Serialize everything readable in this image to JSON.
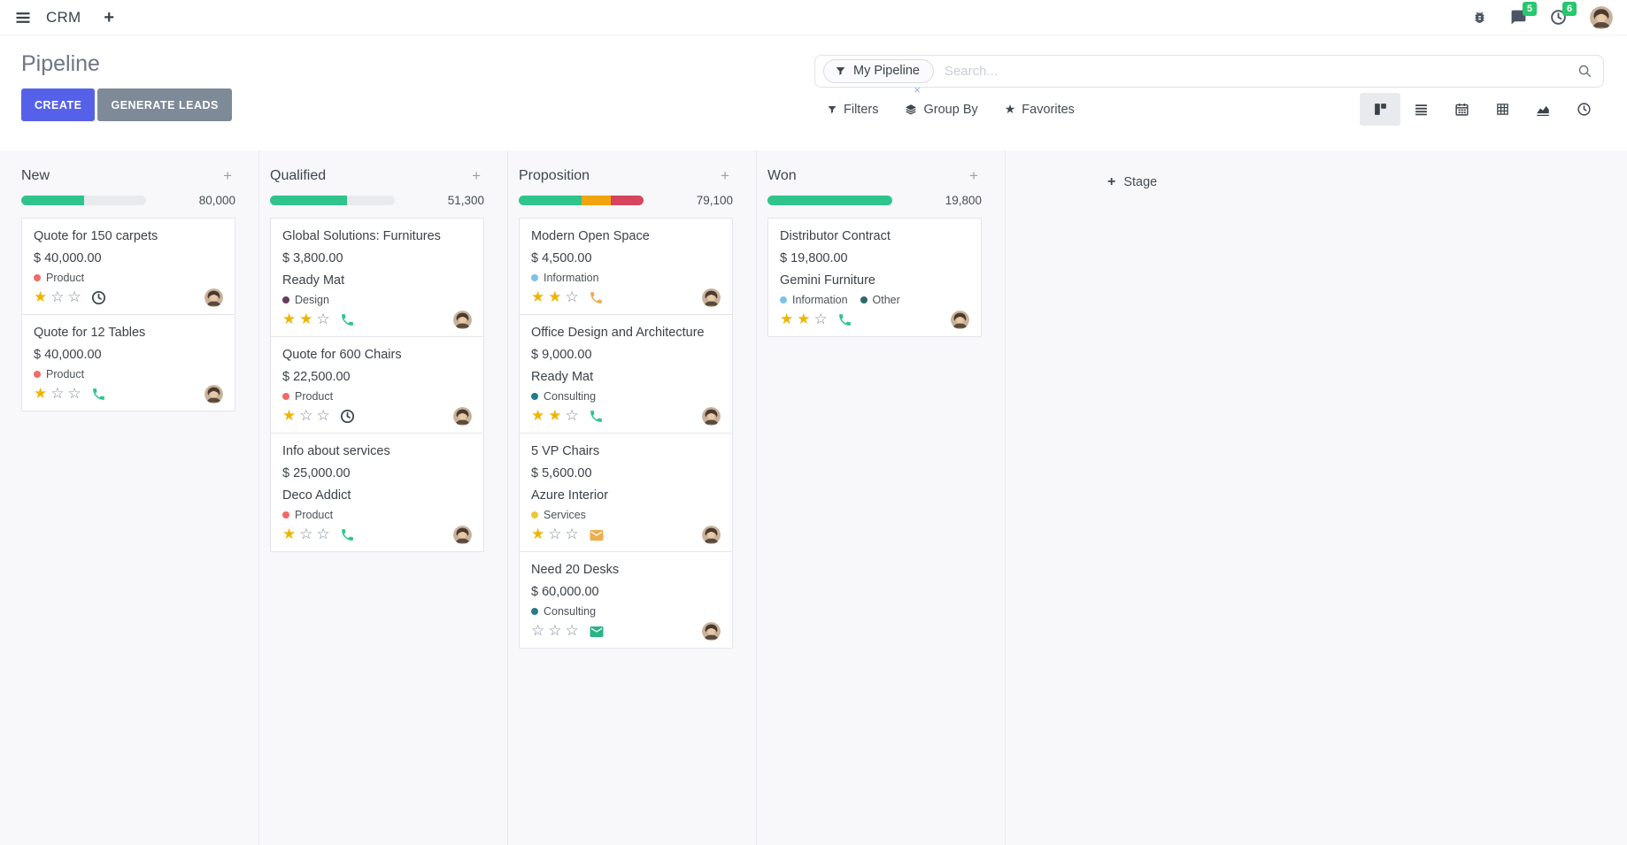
{
  "colors": {
    "primary": "#5661EA",
    "secondary": "#7E8A97",
    "success": "#28C76F",
    "star_gold": "#EFB402",
    "star_empty": "#7D8798",
    "progress_green": "#30C48D",
    "progress_orange": "#F0A40E",
    "progress_red": "#D6455D"
  },
  "icons": {
    "plus": "+"
  },
  "navbar": {
    "app_name": "CRM",
    "messages_badge": "5",
    "activities_badge": "6"
  },
  "control_panel": {
    "title": "Pipeline",
    "create_label": "CREATE",
    "generate_leads_label": "GENERATE LEADS",
    "filters_label": "Filters",
    "group_by_label": "Group By",
    "favorites_label": "Favorites",
    "search": {
      "facet_label": "My Pipeline",
      "facet_remove": "×",
      "placeholder": "Search..."
    },
    "view_switcher_active": "kanban"
  },
  "kanban": {
    "add_stage_label": "Stage",
    "columns": [
      {
        "name": "New",
        "amount": "80,000",
        "progress": [
          {
            "color": "#30C48D",
            "pct": 50
          }
        ],
        "cards": [
          {
            "title": "Quote for 150 carpets",
            "amount": "$ 40,000.00",
            "tags": [
              {
                "label": "Product",
                "color": "#F06A67"
              }
            ],
            "stars": 1,
            "action": {
              "icon": "clock",
              "color": "#3F4750"
            }
          },
          {
            "title": "Quote for 12 Tables",
            "amount": "$ 40,000.00",
            "tags": [
              {
                "label": "Product",
                "color": "#F06A67"
              }
            ],
            "stars": 1,
            "action": {
              "icon": "phone",
              "color": "#2EC58C"
            }
          }
        ]
      },
      {
        "name": "Qualified",
        "amount": "51,300",
        "progress": [
          {
            "color": "#30C48D",
            "pct": 62
          }
        ],
        "cards": [
          {
            "title": "Global Solutions: Furnitures",
            "amount": "$ 3,800.00",
            "partner": "Ready Mat",
            "tags": [
              {
                "label": "Design",
                "color": "#683A5F"
              }
            ],
            "stars": 2,
            "action": {
              "icon": "phone",
              "color": "#2EC58C"
            }
          },
          {
            "title": "Quote for 600 Chairs",
            "amount": "$ 22,500.00",
            "tags": [
              {
                "label": "Product",
                "color": "#F06A67"
              }
            ],
            "stars": 1,
            "action": {
              "icon": "clock",
              "color": "#3F4750"
            }
          },
          {
            "title": "Info about services",
            "amount": "$ 25,000.00",
            "partner": "Deco Addict",
            "tags": [
              {
                "label": "Product",
                "color": "#F06A67"
              }
            ],
            "stars": 1,
            "action": {
              "icon": "phone",
              "color": "#2EC58C"
            }
          }
        ]
      },
      {
        "name": "Proposition",
        "amount": "79,100",
        "progress": [
          {
            "color": "#30C48D",
            "pct": 50
          },
          {
            "color": "#F0A40E",
            "pct": 24
          },
          {
            "color": "#D6455D",
            "pct": 26
          }
        ],
        "cards": [
          {
            "title": "Modern Open Space",
            "amount": "$ 4,500.00",
            "tags": [
              {
                "label": "Information",
                "color": "#7EC1EA"
              }
            ],
            "stars": 2,
            "action": {
              "icon": "phone",
              "color": "#EDAE4F"
            }
          },
          {
            "title": "Office Design and Architecture",
            "amount": "$ 9,000.00",
            "partner": "Ready Mat",
            "tags": [
              {
                "label": "Consulting",
                "color": "#267B8C"
              }
            ],
            "stars": 2,
            "action": {
              "icon": "phone",
              "color": "#2EC58C"
            }
          },
          {
            "title": "5 VP Chairs",
            "amount": "$ 5,600.00",
            "partner": "Azure Interior",
            "tags": [
              {
                "label": "Services",
                "color": "#EEC733"
              }
            ],
            "stars": 1,
            "action": {
              "icon": "envelope",
              "color": "#EDAE4F"
            }
          },
          {
            "title": "Need 20 Desks",
            "amount": "$ 60,000.00",
            "tags": [
              {
                "label": "Consulting",
                "color": "#267B8C"
              }
            ],
            "stars": 0,
            "action": {
              "icon": "envelope",
              "color": "#2BB488"
            }
          }
        ]
      },
      {
        "name": "Won",
        "amount": "19,800",
        "progress": [
          {
            "color": "#30C48D",
            "pct": 100
          }
        ],
        "cards": [
          {
            "title": "Distributor Contract",
            "amount": "$ 19,800.00",
            "partner": "Gemini Furniture",
            "tags": [
              {
                "label": "Information",
                "color": "#7EC1EA"
              },
              {
                "label": "Other",
                "color": "#2C6B6F"
              }
            ],
            "stars": 2,
            "action": {
              "icon": "phone",
              "color": "#2EC58C"
            }
          }
        ]
      }
    ]
  }
}
